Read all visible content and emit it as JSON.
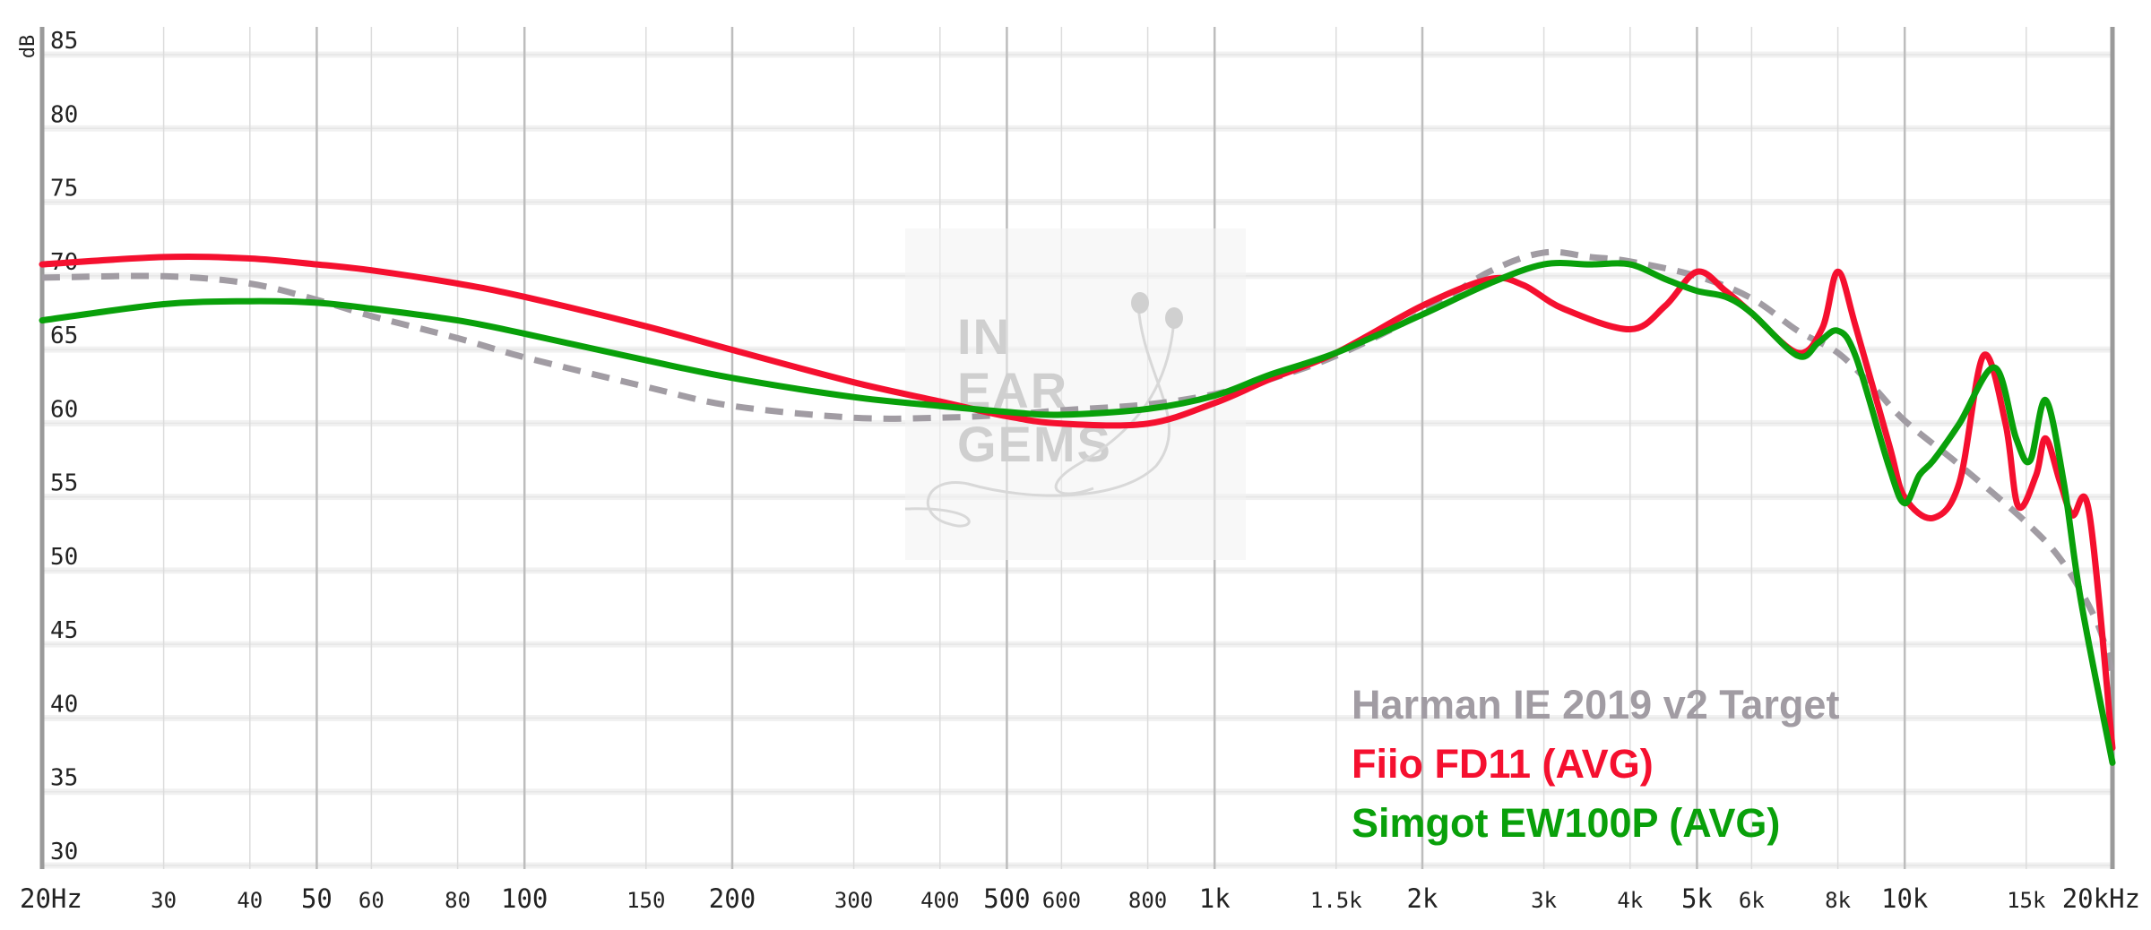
{
  "chart_data": {
    "type": "line",
    "title": "",
    "xlabel": "",
    "ylabel": "dB",
    "x_scale": "log",
    "xlim": [
      20,
      20000
    ],
    "ylim": [
      28,
      86
    ],
    "grid": true,
    "legend_position": "bottom-right",
    "x_ticks": [
      {
        "v": 20,
        "label": "20Hz",
        "major": true
      },
      {
        "v": 30,
        "label": "30",
        "major": false
      },
      {
        "v": 40,
        "label": "40",
        "major": false
      },
      {
        "v": 50,
        "label": "50",
        "major": true
      },
      {
        "v": 60,
        "label": "60",
        "major": false
      },
      {
        "v": 80,
        "label": "80",
        "major": false
      },
      {
        "v": 100,
        "label": "100",
        "major": true
      },
      {
        "v": 150,
        "label": "150",
        "major": false
      },
      {
        "v": 200,
        "label": "200",
        "major": true
      },
      {
        "v": 300,
        "label": "300",
        "major": false
      },
      {
        "v": 400,
        "label": "400",
        "major": false
      },
      {
        "v": 500,
        "label": "500",
        "major": true
      },
      {
        "v": 600,
        "label": "600",
        "major": false
      },
      {
        "v": 800,
        "label": "800",
        "major": false
      },
      {
        "v": 1000,
        "label": "1k",
        "major": true
      },
      {
        "v": 1500,
        "label": "1.5k",
        "major": false
      },
      {
        "v": 2000,
        "label": "2k",
        "major": true
      },
      {
        "v": 3000,
        "label": "3k",
        "major": false
      },
      {
        "v": 4000,
        "label": "4k",
        "major": false
      },
      {
        "v": 5000,
        "label": "5k",
        "major": true
      },
      {
        "v": 6000,
        "label": "6k",
        "major": false
      },
      {
        "v": 8000,
        "label": "8k",
        "major": false
      },
      {
        "v": 10000,
        "label": "10k",
        "major": true
      },
      {
        "v": 15000,
        "label": "15k",
        "major": false
      },
      {
        "v": 20000,
        "label": "20kHz",
        "major": true
      }
    ],
    "y_ticks": [
      30,
      35,
      40,
      45,
      50,
      55,
      60,
      65,
      70,
      75,
      80,
      85
    ],
    "series": [
      {
        "name": "Harman IE 2019 v2 Target",
        "color": "#a19ca3",
        "dashed": true,
        "points": [
          [
            20,
            68.9
          ],
          [
            30,
            69.0
          ],
          [
            40,
            68.5
          ],
          [
            50,
            67.4
          ],
          [
            60,
            66.3
          ],
          [
            80,
            64.8
          ],
          [
            100,
            63.5
          ],
          [
            150,
            61.5
          ],
          [
            200,
            60.2
          ],
          [
            300,
            59.4
          ],
          [
            400,
            59.4
          ],
          [
            500,
            59.6
          ],
          [
            600,
            59.9
          ],
          [
            800,
            60.3
          ],
          [
            1000,
            61.0
          ],
          [
            1200,
            62.0
          ],
          [
            1500,
            63.6
          ],
          [
            2000,
            66.5
          ],
          [
            2500,
            69.3
          ],
          [
            3000,
            70.6
          ],
          [
            3500,
            70.3
          ],
          [
            4000,
            70.0
          ],
          [
            5000,
            69.0
          ],
          [
            6000,
            67.5
          ],
          [
            7000,
            65.3
          ],
          [
            8000,
            63.8
          ],
          [
            9000,
            61.5
          ],
          [
            10000,
            59.2
          ],
          [
            12000,
            56.2
          ],
          [
            15000,
            52.3
          ],
          [
            17000,
            49.5
          ],
          [
            19000,
            45.5
          ],
          [
            20000,
            42.0
          ]
        ]
      },
      {
        "name": "Fiio FD11 (AVG)",
        "color": "#f5102f",
        "dashed": false,
        "points": [
          [
            20,
            69.8
          ],
          [
            30,
            70.3
          ],
          [
            40,
            70.2
          ],
          [
            50,
            69.8
          ],
          [
            60,
            69.4
          ],
          [
            80,
            68.5
          ],
          [
            100,
            67.6
          ],
          [
            150,
            65.6
          ],
          [
            200,
            64.0
          ],
          [
            300,
            61.8
          ],
          [
            400,
            60.5
          ],
          [
            500,
            59.5
          ],
          [
            600,
            59.0
          ],
          [
            800,
            59.0
          ],
          [
            1000,
            60.4
          ],
          [
            1200,
            62.0
          ],
          [
            1500,
            63.8
          ],
          [
            2000,
            67.0
          ],
          [
            2500,
            68.8
          ],
          [
            2800,
            68.4
          ],
          [
            3200,
            66.8
          ],
          [
            4000,
            65.4
          ],
          [
            4500,
            67.0
          ],
          [
            5000,
            69.3
          ],
          [
            5500,
            68.0
          ],
          [
            6000,
            66.5
          ],
          [
            7000,
            63.8
          ],
          [
            7600,
            65.5
          ],
          [
            8000,
            69.3
          ],
          [
            8500,
            65.5
          ],
          [
            9500,
            57.5
          ],
          [
            10000,
            54.0
          ],
          [
            11000,
            52.6
          ],
          [
            12000,
            55.0
          ],
          [
            13000,
            63.6
          ],
          [
            14000,
            59.0
          ],
          [
            14600,
            53.4
          ],
          [
            15500,
            55.5
          ],
          [
            16000,
            58.0
          ],
          [
            16800,
            55.0
          ],
          [
            17500,
            52.8
          ],
          [
            18500,
            53.0
          ],
          [
            20000,
            37.0
          ]
        ]
      },
      {
        "name": "Simgot EW100P (AVG)",
        "color": "#09a00a",
        "dashed": false,
        "points": [
          [
            20,
            66.0
          ],
          [
            30,
            67.1
          ],
          [
            40,
            67.3
          ],
          [
            50,
            67.2
          ],
          [
            60,
            66.8
          ],
          [
            80,
            66.0
          ],
          [
            100,
            65.1
          ],
          [
            150,
            63.3
          ],
          [
            200,
            62.1
          ],
          [
            300,
            60.8
          ],
          [
            400,
            60.2
          ],
          [
            500,
            59.8
          ],
          [
            600,
            59.6
          ],
          [
            800,
            60.0
          ],
          [
            1000,
            60.9
          ],
          [
            1200,
            62.3
          ],
          [
            1500,
            63.8
          ],
          [
            2000,
            66.4
          ],
          [
            2500,
            68.5
          ],
          [
            3000,
            69.8
          ],
          [
            3500,
            69.8
          ],
          [
            4000,
            69.8
          ],
          [
            4500,
            68.8
          ],
          [
            5000,
            68.0
          ],
          [
            5500,
            67.6
          ],
          [
            6000,
            66.5
          ],
          [
            7000,
            63.6
          ],
          [
            7500,
            64.5
          ],
          [
            8000,
            65.3
          ],
          [
            8500,
            63.5
          ],
          [
            9500,
            56.0
          ],
          [
            10000,
            53.6
          ],
          [
            10500,
            55.5
          ],
          [
            11000,
            56.5
          ],
          [
            12000,
            59.0
          ],
          [
            13500,
            62.8
          ],
          [
            14500,
            58.0
          ],
          [
            15200,
            56.5
          ],
          [
            16000,
            60.6
          ],
          [
            17000,
            55.0
          ],
          [
            18000,
            47.0
          ],
          [
            20000,
            36.0
          ]
        ]
      }
    ]
  },
  "watermark": {
    "lines": [
      "IN",
      "EAR",
      "GEMS"
    ]
  }
}
